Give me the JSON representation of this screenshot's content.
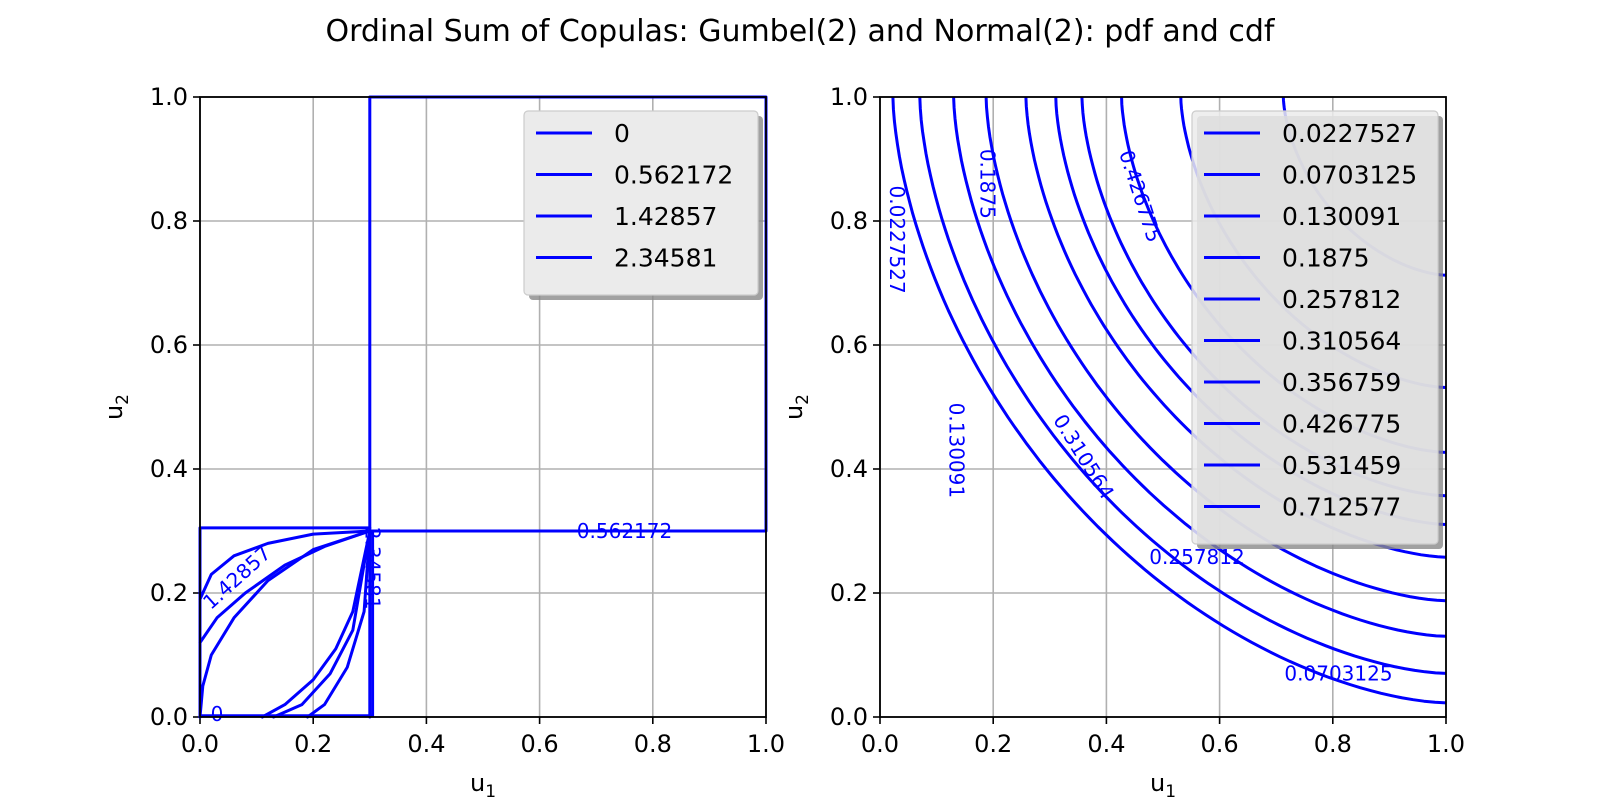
{
  "title": "Ordinal Sum of Copulas: Gumbel(2) and Normal(2): pdf and cdf",
  "colors": {
    "line": "#0000ff",
    "grid": "#b0b0b0",
    "legend_bg": "#ebebeb"
  },
  "chart_data": [
    {
      "type": "contour",
      "name": "pdf",
      "xlabel": "u1",
      "ylabel": "u2",
      "xlim": [
        0,
        1
      ],
      "ylim": [
        0,
        1
      ],
      "xticks": [
        "0.0",
        "0.2",
        "0.4",
        "0.6",
        "0.8",
        "1.0"
      ],
      "yticks": [
        "0.0",
        "0.2",
        "0.4",
        "0.6",
        "0.8",
        "1.0"
      ],
      "grid": true,
      "legend_position": "top-right",
      "levels": [
        "0",
        "0.562172",
        "1.42857",
        "2.34581"
      ],
      "contour_labels": [
        {
          "text": "0.562172",
          "x": 0.75,
          "y": 0.3,
          "angle": 0
        },
        {
          "text": "1.42857",
          "x": 0.065,
          "y": 0.225,
          "angle": -42
        },
        {
          "text": "2.34581",
          "x": 0.305,
          "y": 0.24,
          "angle": 90
        },
        {
          "text": "0",
          "x": 0.03,
          "y": 0.005,
          "angle": 0
        }
      ],
      "lines": [
        {
          "level": "0.562172",
          "points": [
            [
              0.3,
              0.3
            ],
            [
              0.3,
              1.0
            ],
            [
              1.0,
              1.0
            ],
            [
              1.0,
              0.3
            ],
            [
              0.3,
              0.3
            ]
          ]
        },
        {
          "level": "0.562172",
          "points": [
            [
              0.3,
              0.3
            ],
            [
              0.3,
              0.0
            ]
          ]
        },
        {
          "level": "0",
          "points": [
            [
              0.0,
              0.0
            ],
            [
              0.0,
              0.305
            ],
            [
              0.3,
              0.305
            ]
          ]
        },
        {
          "level": "0",
          "points": [
            [
              0.0,
              0.002
            ],
            [
              0.305,
              0.002
            ],
            [
              0.305,
              0.3
            ]
          ]
        },
        {
          "level": "1.42857",
          "points": [
            [
              0.0,
              0.12
            ],
            [
              0.03,
              0.16
            ],
            [
              0.08,
              0.2
            ],
            [
              0.15,
              0.245
            ],
            [
              0.22,
              0.275
            ],
            [
              0.3,
              0.3
            ]
          ]
        },
        {
          "level": "1.42857",
          "points": [
            [
              0.0,
              0.19
            ],
            [
              0.02,
              0.23
            ],
            [
              0.06,
              0.26
            ],
            [
              0.12,
              0.28
            ],
            [
              0.2,
              0.295
            ],
            [
              0.3,
              0.3
            ]
          ]
        },
        {
          "level": "2.34581",
          "points": [
            [
              0.11,
              0.0
            ],
            [
              0.15,
              0.02
            ],
            [
              0.2,
              0.06
            ],
            [
              0.24,
              0.11
            ],
            [
              0.27,
              0.17
            ],
            [
              0.3,
              0.3
            ]
          ]
        },
        {
          "level": "2.34581",
          "points": [
            [
              0.13,
              0.0
            ],
            [
              0.18,
              0.02
            ],
            [
              0.23,
              0.07
            ],
            [
              0.27,
              0.14
            ],
            [
              0.3,
              0.3
            ]
          ]
        },
        {
          "level": "2.34581",
          "points": [
            [
              0.19,
              0.0
            ],
            [
              0.22,
              0.02
            ],
            [
              0.26,
              0.08
            ],
            [
              0.29,
              0.17
            ],
            [
              0.3,
              0.3
            ]
          ]
        },
        {
          "level": "2.34581",
          "points": [
            [
              0.0,
              0.0
            ],
            [
              0.005,
              0.05
            ],
            [
              0.02,
              0.1
            ],
            [
              0.06,
              0.16
            ],
            [
              0.12,
              0.22
            ],
            [
              0.2,
              0.27
            ],
            [
              0.3,
              0.3
            ]
          ]
        }
      ]
    },
    {
      "type": "contour",
      "name": "cdf",
      "xlabel": "u1",
      "ylabel": "u2",
      "xlim": [
        0,
        1
      ],
      "ylim": [
        0,
        1
      ],
      "xticks": [
        "0.0",
        "0.2",
        "0.4",
        "0.6",
        "0.8",
        "1.0"
      ],
      "yticks": [
        "0.0",
        "0.2",
        "0.4",
        "0.6",
        "0.8",
        "1.0"
      ],
      "grid": true,
      "legend_position": "top-right",
      "levels": [
        "0.0227527",
        "0.0703125",
        "0.130091",
        "0.1875",
        "0.257812",
        "0.310564",
        "0.356759",
        "0.426775",
        "0.531459",
        "0.712577"
      ],
      "contour_labels": [
        {
          "text": "0.0227527",
          "x": 0.03,
          "y": 0.77,
          "angle": 90
        },
        {
          "text": "0.1875",
          "x": 0.19,
          "y": 0.86,
          "angle": 90
        },
        {
          "text": "0.426775",
          "x": 0.46,
          "y": 0.84,
          "angle": 72
        },
        {
          "text": "0.130091",
          "x": 0.135,
          "y": 0.43,
          "angle": 90
        },
        {
          "text": "0.310564",
          "x": 0.36,
          "y": 0.42,
          "angle": 58
        },
        {
          "text": "0.257812",
          "x": 0.56,
          "y": 0.258,
          "angle": 0
        },
        {
          "text": "0.0703125",
          "x": 0.81,
          "y": 0.07,
          "angle": 0
        }
      ]
    }
  ]
}
